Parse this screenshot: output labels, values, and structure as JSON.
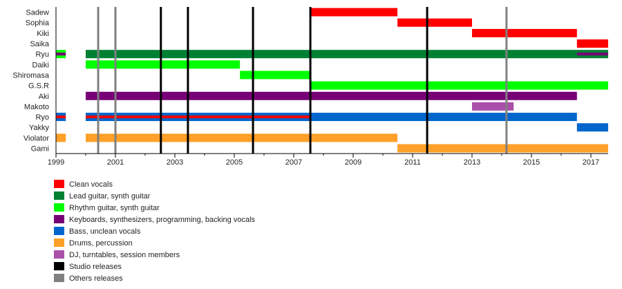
{
  "chart_data": {
    "type": "timeline",
    "xlim": [
      1999,
      2017.58
    ],
    "xticks": [
      1999,
      2001,
      2003,
      2005,
      2007,
      2009,
      2011,
      2013,
      2015,
      2017
    ],
    "roles": [
      {
        "key": "clean",
        "label": "Clean vocals",
        "color": "#ff0000"
      },
      {
        "key": "lead",
        "label": "Lead guitar, synth guitar",
        "color": "#008033"
      },
      {
        "key": "rhythm",
        "label": "Rhythm guitar, synth guitar",
        "color": "#00ff00"
      },
      {
        "key": "keys",
        "label": "Keyboards, synthesizers, programming, backing vocals",
        "color": "#770077"
      },
      {
        "key": "bass",
        "label": "Bass, unclean vocals",
        "color": "#0066cc"
      },
      {
        "key": "drums",
        "label": "Drums, percussion",
        "color": "#ffa028"
      },
      {
        "key": "dj",
        "label": "DJ, turntables, session members",
        "color": "#aa4faa"
      },
      {
        "key": "studio",
        "label": "Studio releases",
        "color": "#000000"
      },
      {
        "key": "other",
        "label": "Others releases",
        "color": "#808080"
      }
    ],
    "members": [
      {
        "name": "Sadew",
        "bars": [
          {
            "role": "clean",
            "from": 2007.58,
            "to": 2010.49
          }
        ]
      },
      {
        "name": "Sophia",
        "bars": [
          {
            "role": "clean",
            "from": 2010.49,
            "to": 2013.0
          }
        ]
      },
      {
        "name": "Kiki",
        "bars": [
          {
            "role": "clean",
            "from": 2013.0,
            "to": 2016.53
          }
        ]
      },
      {
        "name": "Saika",
        "bars": [
          {
            "role": "clean",
            "from": 2016.53,
            "to": 2017.58
          }
        ]
      },
      {
        "name": "Ryu",
        "bars": [
          {
            "role": "rhythm",
            "from": 1999,
            "to": 1999.33,
            "strip": "keys"
          },
          {
            "role": "lead",
            "from": 2000,
            "to": 2017.58
          },
          {
            "role": "lead",
            "from": 2016.53,
            "to": 2017.58,
            "strip": "keys"
          }
        ]
      },
      {
        "name": "Daiki",
        "bars": [
          {
            "role": "rhythm",
            "from": 2000,
            "to": 2005.19
          }
        ]
      },
      {
        "name": "Shiromasa",
        "bars": [
          {
            "role": "rhythm",
            "from": 2005.19,
            "to": 2007.58
          }
        ]
      },
      {
        "name": "G.S.R",
        "bars": [
          {
            "role": "rhythm",
            "from": 2007.58,
            "to": 2017.58
          }
        ]
      },
      {
        "name": "Aki",
        "bars": [
          {
            "role": "keys",
            "from": 2000,
            "to": 2016.53
          }
        ]
      },
      {
        "name": "Makoto",
        "bars": [
          {
            "role": "dj",
            "from": 2013.0,
            "to": 2014.4
          }
        ]
      },
      {
        "name": "Ryo",
        "bars": [
          {
            "role": "bass",
            "from": 1999,
            "to": 1999.33,
            "strip": "clean"
          },
          {
            "role": "bass",
            "from": 2000,
            "to": 2016.53
          },
          {
            "role": "bass",
            "from": 2000,
            "to": 2007.58,
            "strip": "clean"
          }
        ]
      },
      {
        "name": "Yakky",
        "bars": [
          {
            "role": "bass",
            "from": 2016.53,
            "to": 2017.58
          }
        ]
      },
      {
        "name": "Violator",
        "bars": [
          {
            "role": "drums",
            "from": 1999,
            "to": 1999.33
          },
          {
            "role": "drums",
            "from": 2000,
            "to": 2010.49
          }
        ]
      },
      {
        "name": "Gami",
        "bars": [
          {
            "role": "drums",
            "from": 2010.49,
            "to": 2017.58
          }
        ]
      }
    ],
    "releases": [
      {
        "type": "other",
        "year": 2000.42
      },
      {
        "type": "other",
        "year": 2001.0
      },
      {
        "type": "other",
        "year": 2014.16
      },
      {
        "type": "studio",
        "year": 2002.53
      },
      {
        "type": "studio",
        "year": 2003.44
      },
      {
        "type": "studio",
        "year": 2005.63
      },
      {
        "type": "studio",
        "year": 2007.56
      },
      {
        "type": "studio",
        "year": 2011.49
      }
    ]
  }
}
